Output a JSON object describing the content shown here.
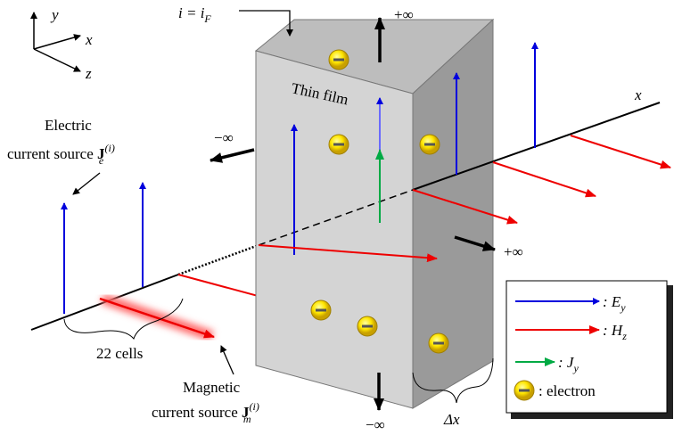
{
  "triad": {
    "y": "y",
    "x": "x",
    "z": "z"
  },
  "fermi_label": {
    "main": "i = i",
    "sub": "F"
  },
  "top_inf": "+∞",
  "film_label": "Thin film",
  "x_axis_label": "x",
  "left_inf": "−∞",
  "electric_source": {
    "line1": "Electric",
    "line2": "current source ",
    "symbol": "J",
    "sub": "e",
    "sup": "(i)"
  },
  "right_inf": "+∞",
  "cells_label": "22 cells",
  "magnetic_source": {
    "line1": "Magnetic",
    "line2": "current source ",
    "symbol": "J",
    "sub": "m",
    "sup": "(i)"
  },
  "bottom_inf": "−∞",
  "thickness_label": "Δx",
  "legend": [
    {
      "text": ": E",
      "sub": "y"
    },
    {
      "text": ": H",
      "sub": "z"
    },
    {
      "text": ": J",
      "sub": "y"
    },
    {
      "text": ": electron"
    }
  ]
}
